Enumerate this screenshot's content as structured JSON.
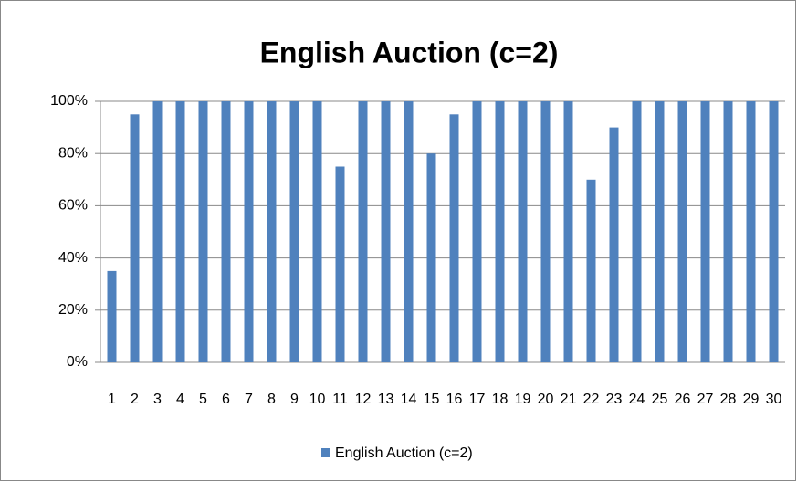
{
  "chart_data": {
    "type": "bar",
    "title": "English Auction (c=2)",
    "categories": [
      "1",
      "2",
      "3",
      "4",
      "5",
      "6",
      "7",
      "8",
      "9",
      "10",
      "11",
      "12",
      "13",
      "14",
      "15",
      "16",
      "17",
      "18",
      "19",
      "20",
      "21",
      "22",
      "23",
      "24",
      "25",
      "26",
      "27",
      "28",
      "29",
      "30"
    ],
    "series": [
      {
        "name": "English Auction (c=2)",
        "color": "#4f81bd",
        "values": [
          35,
          95,
          100,
          100,
          100,
          100,
          100,
          100,
          100,
          100,
          75,
          100,
          100,
          100,
          80,
          95,
          100,
          100,
          100,
          100,
          100,
          70,
          90,
          100,
          100,
          100,
          100,
          100,
          100,
          100
        ]
      }
    ],
    "ylim": [
      0,
      100
    ],
    "yticks": [
      {
        "value": 0,
        "label": "0%"
      },
      {
        "value": 20,
        "label": "20%"
      },
      {
        "value": 40,
        "label": "40%"
      },
      {
        "value": 60,
        "label": "60%"
      },
      {
        "value": 80,
        "label": "80%"
      },
      {
        "value": 100,
        "label": "100%"
      }
    ],
    "grid": true,
    "legend": "bottom"
  }
}
